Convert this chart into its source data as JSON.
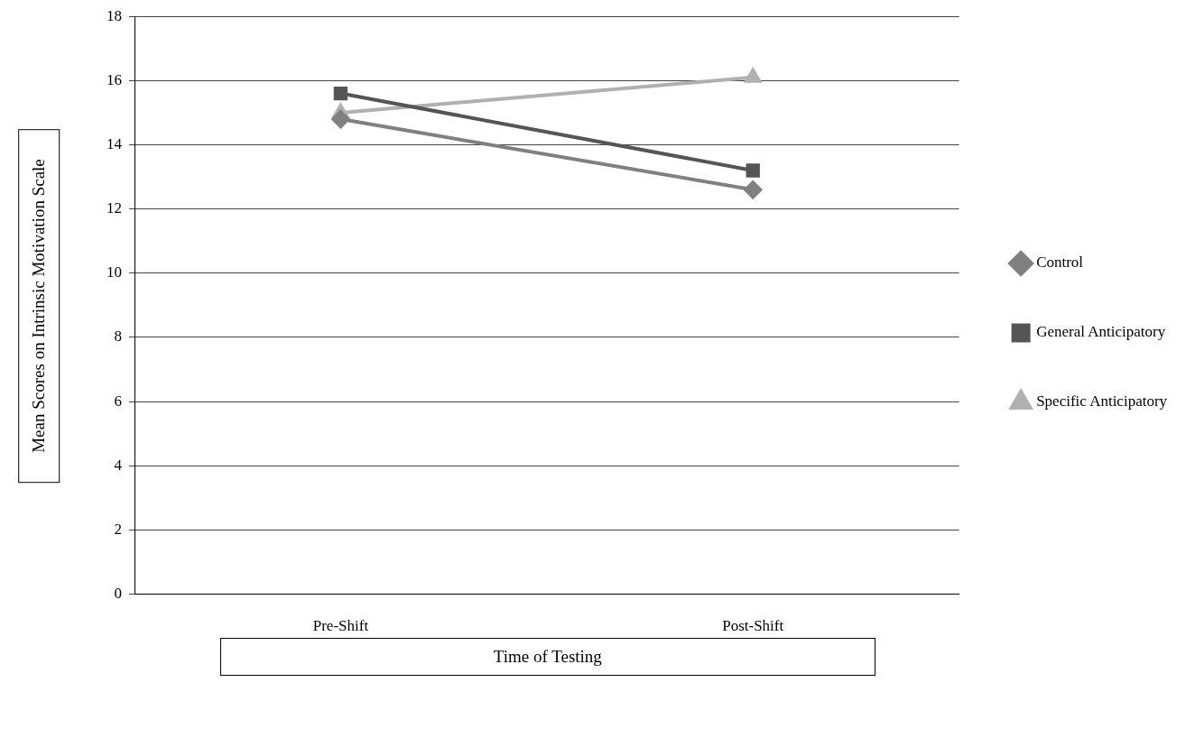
{
  "chart_data": {
    "type": "line",
    "xlabel": "Time of Testing",
    "ylabel": "Mean Scores on Intrinsic Motivation Scale",
    "categories": [
      "Pre-Shift",
      "Post-Shift"
    ],
    "series": [
      {
        "name": "Control",
        "color": "#808080",
        "values": [
          14.8,
          12.6
        ],
        "marker": "diamond"
      },
      {
        "name": "General Anticipatory",
        "color": "#555555",
        "values": [
          15.6,
          13.2
        ],
        "marker": "square"
      },
      {
        "name": "Specific Anticipatory",
        "color": "#b0b0b0",
        "values": [
          15.0,
          16.1
        ],
        "marker": "triangle"
      }
    ],
    "ylim": [
      0,
      18
    ],
    "yticks": [
      0,
      2,
      4,
      6,
      8,
      10,
      12,
      14,
      16,
      18
    ],
    "grid": "y",
    "legend": "right"
  }
}
